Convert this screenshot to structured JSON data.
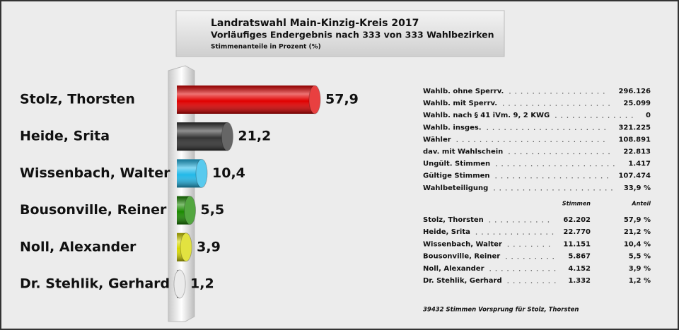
{
  "chart_data": {
    "type": "bar",
    "orientation": "horizontal",
    "title": "Landratswahl Main-Kinzig-Kreis 2017",
    "subtitle": "Vorläufiges Endergebnis nach 333 von 333 Wahlbezirken",
    "note": "Stimmenanteile in Prozent (%)",
    "categories": [
      "Stolz, Thorsten",
      "Heide, Srita",
      "Wissenbach, Walter",
      "Bousonville, Reiner",
      "Noll, Alexander",
      "Dr. Stehlik, Gerhard"
    ],
    "values": [
      57.9,
      21.2,
      10.4,
      5.5,
      3.9,
      1.2
    ],
    "value_labels": [
      "57,9",
      "21,2",
      "10,4",
      "5,5",
      "3,9",
      "1,2"
    ],
    "colors": [
      "#e00000",
      "#333333",
      "#22b8e8",
      "#1a8a00",
      "#d8d800",
      "#e4e4e4"
    ]
  },
  "stats": {
    "rows": [
      [
        "Wahlb. ohne Sperrv.",
        "296.126"
      ],
      [
        "Wahlb. mit Sperrv.",
        "25.099"
      ],
      [
        "Wahlb. nach § 41 iVm. 9, 2 KWG",
        "0"
      ],
      [
        "Wahlb. insges.",
        "321.225"
      ],
      [
        "Wähler",
        "108.891"
      ],
      [
        "dav. mit Wahlschein",
        "22.813"
      ],
      [
        "Ungült. Stimmen",
        "1.417"
      ],
      [
        "Gültige Stimmen",
        "107.474"
      ],
      [
        "Wahlbeteiligung",
        "33,9 %"
      ]
    ]
  },
  "results": {
    "header": [
      "Stimmen",
      "Anteil"
    ],
    "rows": [
      [
        "Stolz, Thorsten",
        "62.202",
        "57,9 %"
      ],
      [
        "Heide, Srita",
        "22.770",
        "21,2 %"
      ],
      [
        "Wissenbach, Walter",
        "11.151",
        "10,4 %"
      ],
      [
        "Bousonville, Reiner",
        "5.867",
        "5,5 %"
      ],
      [
        "Noll, Alexander",
        "4.152",
        "3,9 %"
      ],
      [
        "Dr. Stehlik, Gerhard",
        "1.332",
        "1,2 %"
      ]
    ]
  },
  "footer": "39432 Stimmen Vorsprung für Stolz, Thorsten"
}
